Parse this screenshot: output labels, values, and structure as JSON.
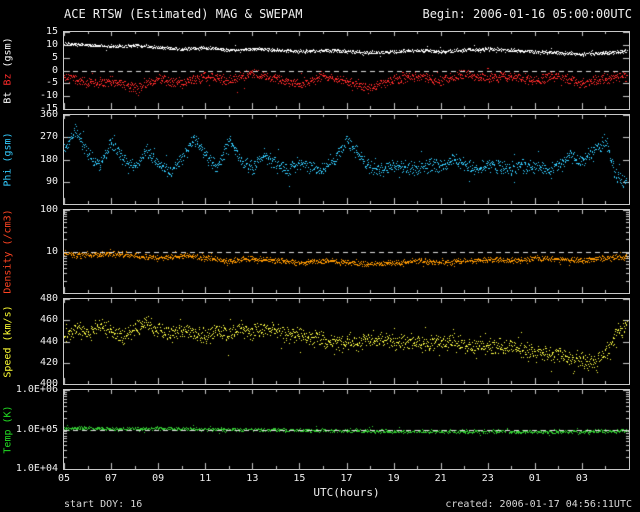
{
  "chart_data": {
    "type": "scatter",
    "title": "ACE RTSW (Estimated) MAG & SWEPAM",
    "begin_label": "Begin: 2006-01-16 05:00:00UTC",
    "xlabel": "UTC(hours)",
    "start_doy_label": "start DOY:  16",
    "created_label": "created: 2006-01-17 04:56:11UTC",
    "x_domain": [
      5,
      29
    ],
    "grid": false,
    "legend": "none",
    "xticks": [
      {
        "h": 5,
        "label": "05"
      },
      {
        "h": 7,
        "label": "07"
      },
      {
        "h": 9,
        "label": "09"
      },
      {
        "h": 11,
        "label": "11"
      },
      {
        "h": 13,
        "label": "13"
      },
      {
        "h": 15,
        "label": "15"
      },
      {
        "h": 17,
        "label": "17"
      },
      {
        "h": 19,
        "label": "19"
      },
      {
        "h": 21,
        "label": "21"
      },
      {
        "h": 23,
        "label": "23"
      },
      {
        "h": 25,
        "label": "01"
      },
      {
        "h": 27,
        "label": "03"
      }
    ],
    "panels": [
      {
        "id": "bt-bz",
        "scale": "linear",
        "y_domain": [
          -15,
          15
        ],
        "refline": 0,
        "yticks": [
          {
            "v": 15,
            "label": "15"
          },
          {
            "v": 10,
            "label": "10"
          },
          {
            "v": 5,
            "label": "5"
          },
          {
            "v": 0,
            "label": "0"
          },
          {
            "v": -5,
            "label": "-5"
          },
          {
            "v": -10,
            "label": "-10"
          },
          {
            "v": -15,
            "label": "-15"
          }
        ],
        "ylabel_parts": [
          {
            "text": "Bt ",
            "color": "#ffffff"
          },
          {
            "text": "Bz ",
            "color": "#ff2a2a"
          },
          {
            "text": "(gsm)",
            "color": "#ffffff"
          }
        ],
        "series": [
          {
            "name": "Bt",
            "color": "#ffffff",
            "jitter": 0.8,
            "seed": 101,
            "x": [
              5,
              6,
              7,
              8,
              9,
              10,
              11,
              12,
              13,
              14,
              15,
              16,
              17,
              18,
              19,
              20,
              21,
              22,
              23,
              24,
              25,
              26,
              27,
              28,
              28.9
            ],
            "y": [
              10.5,
              10,
              9.5,
              10,
              9,
              8.5,
              9,
              8,
              8.5,
              8,
              7.5,
              8,
              7.5,
              7,
              7.5,
              8,
              7.5,
              8,
              8.5,
              8,
              7.5,
              7,
              6.5,
              7,
              7.5
            ]
          },
          {
            "name": "Bz",
            "color": "#ff2a2a",
            "jitter": 2.3,
            "seed": 202,
            "x": [
              5,
              6,
              7,
              8,
              9,
              10,
              11,
              12,
              13,
              14,
              15,
              16,
              17,
              18,
              19,
              20,
              21,
              22,
              23,
              24,
              25,
              26,
              27,
              28,
              28.9
            ],
            "y": [
              -2,
              -5,
              -4,
              -7,
              -3,
              -5,
              -2,
              -4,
              -1,
              -3,
              -5,
              -2,
              -4,
              -7,
              -3,
              -2,
              -4,
              -1,
              -3,
              -2,
              -4,
              -2,
              -5,
              -3,
              -2
            ]
          }
        ]
      },
      {
        "id": "phi",
        "scale": "linear",
        "y_domain": [
          0,
          360
        ],
        "refline": null,
        "yticks": [
          {
            "v": 360,
            "label": "360"
          },
          {
            "v": 270,
            "label": "270"
          },
          {
            "v": 180,
            "label": "180"
          },
          {
            "v": 90,
            "label": "90"
          }
        ],
        "ylabel_parts": [
          {
            "text": "Phi (gsm)",
            "color": "#33ccff"
          }
        ],
        "series": [
          {
            "name": "Phi",
            "color": "#33ccff",
            "jitter": 32,
            "seed": 303,
            "x": [
              5,
              5.5,
              6,
              6.5,
              7,
              7.5,
              8,
              8.5,
              9,
              9.5,
              10,
              10.5,
              11,
              11.5,
              12,
              12.5,
              13,
              13.5,
              14,
              14.5,
              15,
              15.5,
              16,
              16.5,
              17,
              17.5,
              18,
              18.5,
              19,
              19.5,
              20,
              20.5,
              21,
              21.5,
              22,
              22.5,
              23,
              23.5,
              24,
              24.5,
              25,
              25.5,
              26,
              26.5,
              27,
              27.5,
              28,
              28.4,
              28.9
            ],
            "y": [
              220,
              300,
              200,
              160,
              250,
              180,
              150,
              220,
              160,
              130,
              180,
              270,
              200,
              150,
              260,
              180,
              150,
              200,
              160,
              140,
              170,
              150,
              140,
              180,
              260,
              200,
              150,
              140,
              160,
              150,
              140,
              160,
              150,
              180,
              160,
              140,
              160,
              150,
              140,
              160,
              150,
              140,
              160,
              200,
              170,
              220,
              260,
              120,
              80
            ]
          }
        ]
      },
      {
        "id": "density",
        "scale": "log",
        "y_domain": [
          1,
          100
        ],
        "refline": 10,
        "yticks": [
          {
            "v": 100,
            "label": "100"
          },
          {
            "v": 10,
            "label": "10"
          }
        ],
        "ylabel_parts": [
          {
            "text": "Density (/cm3)",
            "color": "#ff4422"
          }
        ],
        "series": [
          {
            "name": "Density",
            "color": "#ff9900",
            "jitter": 0.08,
            "seed": 404,
            "x": [
              5,
              6,
              7,
              8,
              9,
              10,
              11,
              12,
              13,
              14,
              15,
              16,
              17,
              18,
              19,
              20,
              21,
              22,
              23,
              24,
              25,
              26,
              27,
              28,
              28.9
            ],
            "y": [
              9,
              8,
              9,
              8,
              7,
              8,
              7,
              6,
              7,
              6,
              5.5,
              6,
              5.5,
              5,
              5.5,
              6,
              5.5,
              6,
              6.5,
              6,
              7,
              6.5,
              6,
              7,
              7.5
            ]
          }
        ]
      },
      {
        "id": "speed",
        "scale": "linear",
        "y_domain": [
          400,
          480
        ],
        "refline": null,
        "yticks": [
          {
            "v": 480,
            "label": "480"
          },
          {
            "v": 460,
            "label": "460"
          },
          {
            "v": 440,
            "label": "440"
          },
          {
            "v": 420,
            "label": "420"
          },
          {
            "v": 400,
            "label": "400"
          }
        ],
        "ylabel_parts": [
          {
            "text": "Speed (km/s)",
            "color": "#ffff33"
          }
        ],
        "series": [
          {
            "name": "Speed",
            "color": "#ffff44",
            "jitter": 9,
            "seed": 505,
            "x": [
              5,
              5.5,
              6,
              6.5,
              7,
              7.5,
              8,
              8.5,
              9,
              9.5,
              10,
              10.5,
              11,
              11.5,
              12,
              12.5,
              13,
              13.5,
              14,
              15,
              16,
              17,
              18,
              19,
              20,
              21,
              22,
              23,
              24,
              25,
              26,
              27,
              27.5,
              28,
              28.4,
              28.9
            ],
            "y": [
              445,
              452,
              448,
              455,
              450,
              444,
              452,
              458,
              450,
              446,
              452,
              448,
              444,
              450,
              446,
              452,
              448,
              454,
              450,
              446,
              442,
              438,
              442,
              440,
              438,
              440,
              438,
              436,
              434,
              430,
              428,
              424,
              418,
              428,
              446,
              456
            ]
          }
        ]
      },
      {
        "id": "temp",
        "scale": "log",
        "y_domain": [
          10000,
          1000000
        ],
        "refline": 100000,
        "yticks": [
          {
            "v": 1000000,
            "label": "1.0E+06"
          },
          {
            "v": 100000,
            "label": "1.0E+05"
          },
          {
            "v": 10000,
            "label": "1.0E+04"
          }
        ],
        "ylabel_parts": [
          {
            "text": "Temp (K)",
            "color": "#22dd22"
          }
        ],
        "series": [
          {
            "name": "Temp",
            "color": "#33cc33",
            "jitter": 0.055,
            "seed": 606,
            "x": [
              5,
              7,
              9,
              11,
              13,
              15,
              17,
              19,
              21,
              23,
              25,
              27,
              28.9
            ],
            "y": [
              110000,
              105000,
              108000,
              103000,
              100000,
              98000,
              95000,
              92000,
              90000,
              92000,
              88000,
              90000,
              95000
            ]
          }
        ]
      }
    ]
  }
}
